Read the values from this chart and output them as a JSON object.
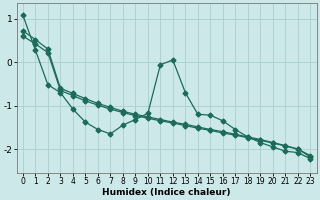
{
  "xlabel": "Humidex (Indice chaleur)",
  "ylabel": "",
  "bg_color": "#cce8e8",
  "line_color": "#1a6b5a",
  "x": [
    0,
    1,
    2,
    3,
    4,
    5,
    6,
    7,
    8,
    9,
    10,
    11,
    12,
    13,
    14,
    15,
    16,
    17,
    18,
    19,
    20,
    21,
    22,
    23
  ],
  "y_wavy": [
    1.08,
    0.28,
    -0.52,
    -0.7,
    -1.08,
    -1.38,
    -1.55,
    -1.65,
    -1.45,
    -1.32,
    -1.18,
    -0.06,
    0.05,
    -0.7,
    -1.2,
    -1.22,
    -1.35,
    -1.55,
    -1.72,
    -1.85,
    -1.95,
    -2.05,
    -2.08,
    -2.22
  ],
  "y_line1": [
    0.72,
    0.52,
    0.3,
    -0.6,
    -0.72,
    -0.84,
    -0.95,
    -1.04,
    -1.13,
    -1.2,
    -1.26,
    -1.32,
    -1.38,
    -1.43,
    -1.49,
    -1.55,
    -1.6,
    -1.66,
    -1.72,
    -1.78,
    -1.85,
    -1.92,
    -2.0,
    -2.15
  ],
  "y_line2": [
    0.6,
    0.42,
    0.22,
    -0.65,
    -0.77,
    -0.89,
    -0.99,
    -1.08,
    -1.16,
    -1.23,
    -1.29,
    -1.35,
    -1.4,
    -1.46,
    -1.52,
    -1.57,
    -1.63,
    -1.68,
    -1.74,
    -1.8,
    -1.86,
    -1.93,
    -2.0,
    -2.18
  ],
  "xlim": [
    -0.5,
    23.5
  ],
  "ylim": [
    -2.55,
    1.35
  ],
  "yticks": [
    -2,
    -1,
    0,
    1
  ],
  "xticks": [
    0,
    1,
    2,
    3,
    4,
    5,
    6,
    7,
    8,
    9,
    10,
    11,
    12,
    13,
    14,
    15,
    16,
    17,
    18,
    19,
    20,
    21,
    22,
    23
  ],
  "grid_color": "#aad0d0",
  "marker_size": 2.5,
  "line_width": 0.9,
  "tick_fontsize": 5.5,
  "xlabel_fontsize": 6.5,
  "ytick_fontsize": 6.5
}
